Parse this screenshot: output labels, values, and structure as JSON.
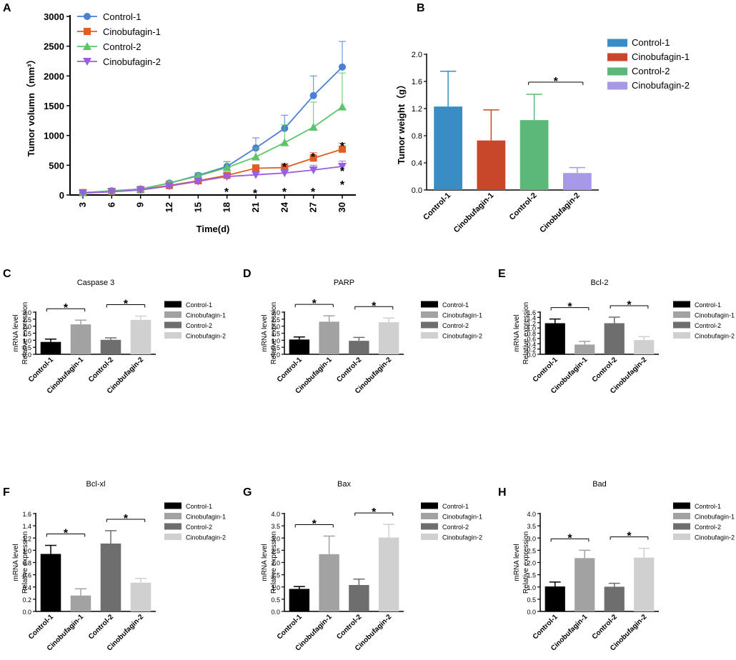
{
  "chart_data": [
    {
      "id": "A",
      "panel": "A",
      "type": "line",
      "xlabel": "Time(d)",
      "ylabel": "Tumor volumn（mm³）",
      "ylim": [
        0,
        3000
      ],
      "yticks": [
        0,
        500,
        1000,
        1500,
        2000,
        2500,
        3000
      ],
      "x": [
        3,
        6,
        9,
        12,
        15,
        18,
        21,
        24,
        27,
        30
      ],
      "legend_position": "top-left",
      "series": [
        {
          "name": "Control-1",
          "color": "#4a7fd4",
          "marker": "circle",
          "values": [
            40,
            70,
            100,
            200,
            330,
            480,
            790,
            1120,
            1670,
            2150
          ],
          "errors": [
            10,
            15,
            20,
            30,
            40,
            80,
            170,
            220,
            330,
            430
          ]
        },
        {
          "name": "Cinobufagin-1",
          "color": "#e35d22",
          "marker": "square",
          "values": [
            40,
            60,
            90,
            160,
            240,
            330,
            450,
            460,
            620,
            770
          ],
          "errors": [
            8,
            10,
            15,
            20,
            30,
            40,
            60,
            70,
            90,
            100
          ]
        },
        {
          "name": "Control-2",
          "color": "#5cc46a",
          "marker": "triangle",
          "values": [
            40,
            70,
            100,
            200,
            320,
            460,
            640,
            880,
            1140,
            1480
          ],
          "errors": [
            10,
            15,
            20,
            30,
            40,
            100,
            150,
            300,
            420,
            570
          ]
        },
        {
          "name": "Cinobufagin-2",
          "color": "#9a5ee0",
          "marker": "triangle-down",
          "values": [
            30,
            55,
            85,
            150,
            230,
            310,
            340,
            370,
            420,
            480
          ],
          "errors": [
            5,
            10,
            12,
            20,
            25,
            40,
            50,
            60,
            80,
            90
          ]
        }
      ],
      "annotations": [
        "*",
        "*",
        "*",
        "*",
        "*",
        "*",
        "*",
        "*",
        "*"
      ]
    },
    {
      "id": "B",
      "panel": "B",
      "type": "bar",
      "ylabel": "Tumor weight（g）",
      "ylim": [
        0,
        2.0
      ],
      "yticks": [
        "0.0",
        "0.4",
        "0.8",
        "1.2",
        "1.6",
        "2.0"
      ],
      "categories": [
        "Control-1",
        "Cinobufagin-1",
        "Control-2",
        "Cinobufagin-2"
      ],
      "values": [
        1.23,
        0.73,
        1.03,
        0.25
      ],
      "errors": [
        0.52,
        0.45,
        0.38,
        0.08
      ],
      "colors": [
        "#3a8dc4",
        "#c8472a",
        "#5bb878",
        "#a898e8"
      ],
      "legend_position": "right",
      "significance": [
        {
          "from": 2,
          "to": 3,
          "label": "*"
        }
      ]
    },
    {
      "id": "C",
      "panel": "C",
      "title": "Caspase 3",
      "type": "bar",
      "ylabel": [
        "mRNA level",
        "Relative expression"
      ],
      "ylim": [
        0,
        3.0
      ],
      "yticks": [
        "0.0",
        "0.5",
        "1.0",
        "1.5",
        "2.0",
        "2.5",
        "3.0"
      ],
      "categories": [
        "Control-1",
        "Cinobufagin-1",
        "Control-2",
        "Cinobufagin-2"
      ],
      "values": [
        0.88,
        2.13,
        1.03,
        2.45
      ],
      "errors": [
        0.2,
        0.3,
        0.14,
        0.27
      ],
      "colors": [
        "#000000",
        "#a2a2a2",
        "#6e6e6e",
        "#d0d0d0"
      ],
      "legend_position": "right",
      "significance": [
        {
          "from": 0,
          "to": 1,
          "label": "*"
        },
        {
          "from": 2,
          "to": 3,
          "label": "*"
        }
      ]
    },
    {
      "id": "D",
      "panel": "D",
      "title": "PARP",
      "type": "bar",
      "ylabel": [
        "mRNA level",
        "Relative expression"
      ],
      "ylim": [
        0,
        3.0
      ],
      "yticks": [
        "0.0",
        "0.5",
        "1.0",
        "1.5",
        "2.0",
        "2.5",
        "3.0"
      ],
      "categories": [
        "Control-1",
        "Cinobufagin-1",
        "Control-2",
        "Cinobufagin-2"
      ],
      "values": [
        1.05,
        2.32,
        0.96,
        2.28
      ],
      "errors": [
        0.18,
        0.42,
        0.24,
        0.3
      ],
      "colors": [
        "#000000",
        "#a2a2a2",
        "#6e6e6e",
        "#d0d0d0"
      ],
      "legend_position": "right",
      "significance": [
        {
          "from": 0,
          "to": 1,
          "label": "*"
        },
        {
          "from": 2,
          "to": 3,
          "label": "*"
        }
      ]
    },
    {
      "id": "E",
      "panel": "E",
      "title": "Bcl-2",
      "type": "bar",
      "ylabel": [
        "mRNA level",
        "Relative expression"
      ],
      "ylim": [
        0,
        1.6
      ],
      "yticks": [
        "0.0",
        "0.2",
        "0.4",
        "0.6",
        "0.8",
        "1.0",
        "1.2",
        "1.4",
        "1.6"
      ],
      "categories": [
        "Control-1",
        "Cinobufagin-1",
        "Control-2",
        "Cinobufagin-2"
      ],
      "values": [
        1.18,
        0.37,
        1.18,
        0.54
      ],
      "errors": [
        0.16,
        0.12,
        0.23,
        0.13
      ],
      "colors": [
        "#000000",
        "#a2a2a2",
        "#6e6e6e",
        "#d0d0d0"
      ],
      "legend_position": "right",
      "significance": [
        {
          "from": 0,
          "to": 1,
          "label": "*"
        },
        {
          "from": 2,
          "to": 3,
          "label": "*"
        }
      ]
    },
    {
      "id": "F",
      "panel": "F",
      "title": "Bcl-xl",
      "type": "bar",
      "ylabel": [
        "mRNA level",
        "Relative expression"
      ],
      "ylim": [
        0,
        1.6
      ],
      "yticks": [
        "0.0",
        "0.2",
        "0.4",
        "0.6",
        "0.8",
        "1.0",
        "1.2",
        "1.4",
        "1.6"
      ],
      "categories": [
        "Control-1",
        "Cinobufagin-1",
        "Control-2",
        "Cinobufagin-2"
      ],
      "values": [
        0.94,
        0.26,
        1.11,
        0.47
      ],
      "errors": [
        0.14,
        0.11,
        0.21,
        0.07
      ],
      "colors": [
        "#000000",
        "#a2a2a2",
        "#6e6e6e",
        "#d0d0d0"
      ],
      "legend_position": "right",
      "significance": [
        {
          "from": 0,
          "to": 1,
          "label": "*"
        },
        {
          "from": 2,
          "to": 3,
          "label": "*"
        }
      ]
    },
    {
      "id": "G",
      "panel": "G",
      "title": "Bax",
      "type": "bar",
      "ylabel": [
        "mRNA level",
        "Relative expression"
      ],
      "ylim": [
        0,
        4.0
      ],
      "yticks": [
        "0.0",
        "0.5",
        "1.0",
        "1.5",
        "2.0",
        "2.5",
        "3.0",
        "3.5",
        "4.0"
      ],
      "categories": [
        "Control-1",
        "Cinobufagin-1",
        "Control-2",
        "Cinobufagin-2"
      ],
      "values": [
        0.92,
        2.34,
        1.08,
        3.02
      ],
      "errors": [
        0.1,
        0.74,
        0.24,
        0.54
      ],
      "colors": [
        "#000000",
        "#a2a2a2",
        "#6e6e6e",
        "#d0d0d0"
      ],
      "legend_position": "right",
      "significance": [
        {
          "from": 0,
          "to": 1,
          "label": "*"
        },
        {
          "from": 2,
          "to": 3,
          "label": "*"
        }
      ]
    },
    {
      "id": "H",
      "panel": "H",
      "title": "Bad",
      "type": "bar",
      "ylabel": [
        "mRNA level",
        "Relative expression"
      ],
      "ylim": [
        0,
        4.0
      ],
      "yticks": [
        "0.0",
        "0.5",
        "1.0",
        "1.5",
        "2.0",
        "2.5",
        "3.0",
        "3.5",
        "4.0"
      ],
      "categories": [
        "Control-1",
        "Cinobufagin-1",
        "Control-2",
        "Cinobufagin-2"
      ],
      "values": [
        1.02,
        2.18,
        1.01,
        2.2
      ],
      "errors": [
        0.18,
        0.32,
        0.14,
        0.38
      ],
      "colors": [
        "#000000",
        "#a2a2a2",
        "#6e6e6e",
        "#d0d0d0"
      ],
      "legend_position": "right",
      "significance": [
        {
          "from": 0,
          "to": 1,
          "label": "*"
        },
        {
          "from": 2,
          "to": 3,
          "label": "*"
        }
      ]
    }
  ]
}
